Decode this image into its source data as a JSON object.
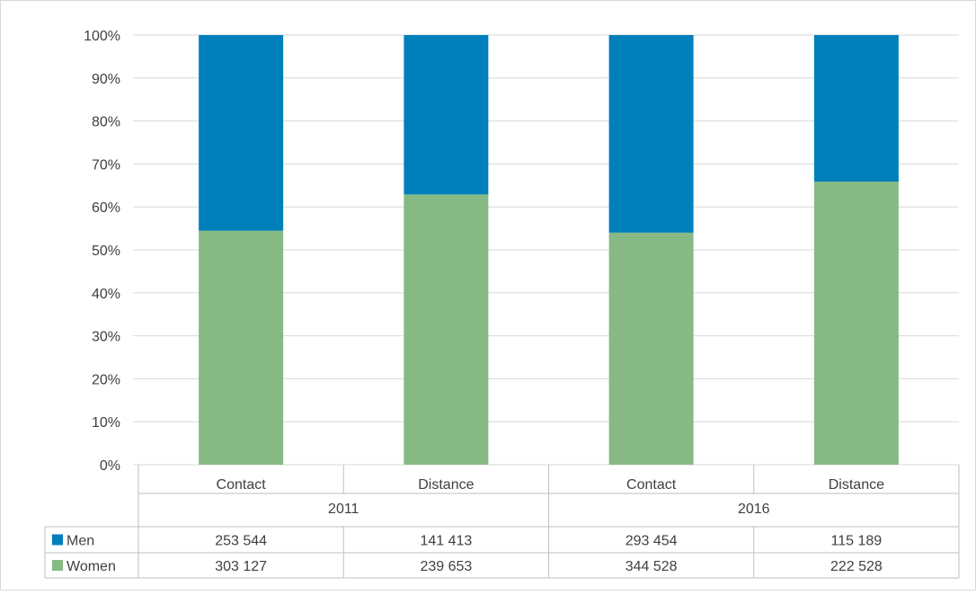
{
  "chart_data": {
    "type": "bar",
    "stacked": "percent",
    "groups": [
      "2011",
      "2016"
    ],
    "categories": [
      "Contact",
      "Distance",
      "Contact",
      "Distance"
    ],
    "series": [
      {
        "name": "Men",
        "color": "#0080BA",
        "values": [
          253544,
          141413,
          293454,
          115189
        ]
      },
      {
        "name": "Women",
        "color": "#87B984",
        "values": [
          303127,
          239653,
          344528,
          222528
        ]
      }
    ],
    "table_values": {
      "Men": [
        "253 544",
        "141 413",
        "293 454",
        "115 189"
      ],
      "Women": [
        "303 127",
        "239 653",
        "344 528",
        "222 528"
      ]
    },
    "yticks": [
      "0%",
      "10%",
      "20%",
      "30%",
      "40%",
      "50%",
      "60%",
      "70%",
      "80%",
      "90%",
      "100%"
    ],
    "ylim": [
      0,
      100
    ],
    "grid": true,
    "legend": "data table"
  }
}
